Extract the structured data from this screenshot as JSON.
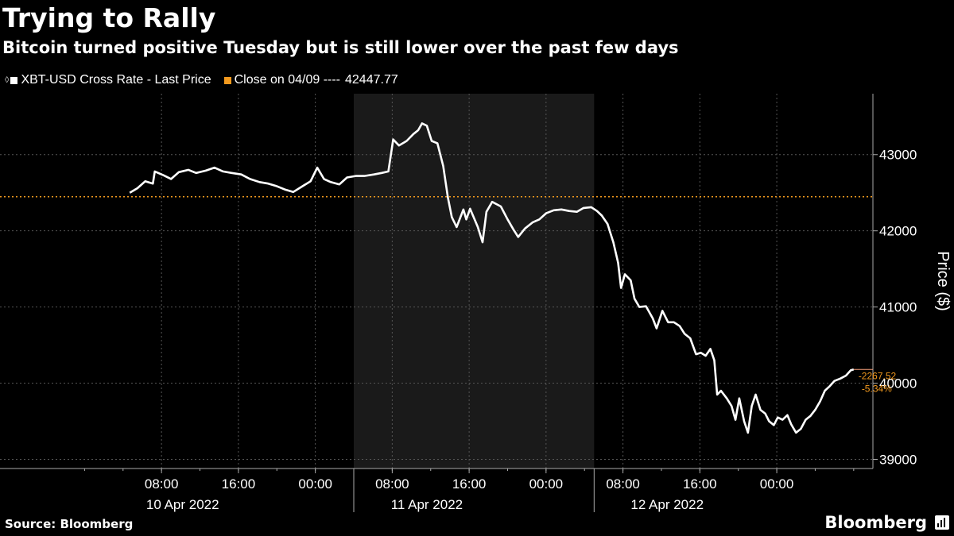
{
  "title": "Trying to Rally",
  "subtitle": "Bitcoin turned positive Tuesday but is still lower over the past few days",
  "legend": [
    {
      "label": "XBT-USD Cross Rate - Last Price",
      "color": "#ffffff",
      "icon": "pin-icon"
    },
    {
      "label": "Close on 04/09 ----",
      "value": "42447.77",
      "color": "#f39a1e"
    }
  ],
  "source": "Source: Bloomberg",
  "brand": "Bloomberg",
  "colors": {
    "background": "#000000",
    "shade": "#1a1a1a",
    "line": "#ffffff",
    "reference": "#f39a1e",
    "grid": "#555555"
  },
  "chart_data": {
    "type": "line",
    "ylabel": "Price ($)",
    "ylim": [
      38880,
      43800
    ],
    "y_ticks": [
      39000,
      40000,
      41000,
      42000,
      43000
    ],
    "x_range_hours": [
      -8.8,
      82
    ],
    "x_ticks": [
      {
        "h": 8,
        "label": "08:00"
      },
      {
        "h": 16,
        "label": "16:00"
      },
      {
        "h": 24,
        "label": "00:00"
      },
      {
        "h": 32,
        "label": "08:00"
      },
      {
        "h": 40,
        "label": "16:00"
      },
      {
        "h": 48,
        "label": "00:00"
      },
      {
        "h": 56,
        "label": "08:00"
      },
      {
        "h": 64,
        "label": "16:00"
      },
      {
        "h": 72,
        "label": "00:00"
      }
    ],
    "date_labels": [
      {
        "label": "10 Apr 2022",
        "center_h": 10.2
      },
      {
        "label": "11 Apr 2022",
        "center_h": 35.6
      },
      {
        "label": "12 Apr 2022",
        "center_h": 60.6
      }
    ],
    "day_dividers_h": [
      28,
      53
    ],
    "shaded_region_h": [
      28,
      53
    ],
    "reference_line": {
      "value": 42447.77
    },
    "annotation": {
      "change": "-2267.52",
      "percent": "-5.34%",
      "last_value": 40180
    },
    "series": [
      {
        "color": "#ffffff",
        "points": [
          [
            4.7,
            42500
          ],
          [
            5.5,
            42560
          ],
          [
            6.3,
            42650
          ],
          [
            7.1,
            42620
          ],
          [
            7.3,
            42780
          ],
          [
            8.2,
            42730
          ],
          [
            9.0,
            42680
          ],
          [
            9.8,
            42770
          ],
          [
            10.8,
            42800
          ],
          [
            11.6,
            42760
          ],
          [
            12.6,
            42790
          ],
          [
            13.5,
            42830
          ],
          [
            14.4,
            42780
          ],
          [
            15.3,
            42760
          ],
          [
            16.3,
            42740
          ],
          [
            17.2,
            42680
          ],
          [
            18.2,
            42640
          ],
          [
            19.1,
            42620
          ],
          [
            19.9,
            42590
          ],
          [
            20.9,
            42540
          ],
          [
            21.7,
            42510
          ],
          [
            22.6,
            42580
          ],
          [
            23.5,
            42650
          ],
          [
            24.2,
            42830
          ],
          [
            24.9,
            42680
          ],
          [
            25.6,
            42640
          ],
          [
            26.5,
            42610
          ],
          [
            27.3,
            42700
          ],
          [
            28.2,
            42720
          ],
          [
            29.1,
            42720
          ],
          [
            30.1,
            42740
          ],
          [
            30.9,
            42760
          ],
          [
            31.6,
            42780
          ],
          [
            32.1,
            43200
          ],
          [
            32.7,
            43120
          ],
          [
            33.5,
            43180
          ],
          [
            34.2,
            43270
          ],
          [
            34.7,
            43320
          ],
          [
            35.1,
            43410
          ],
          [
            35.6,
            43380
          ],
          [
            36.1,
            43180
          ],
          [
            36.7,
            43150
          ],
          [
            37.3,
            42850
          ],
          [
            37.8,
            42430
          ],
          [
            38.2,
            42180
          ],
          [
            38.7,
            42050
          ],
          [
            39.4,
            42280
          ],
          [
            39.7,
            42150
          ],
          [
            40.1,
            42290
          ],
          [
            40.9,
            42050
          ],
          [
            41.4,
            41850
          ],
          [
            41.8,
            42250
          ],
          [
            42.4,
            42380
          ],
          [
            43.3,
            42320
          ],
          [
            44.0,
            42150
          ],
          [
            44.6,
            42020
          ],
          [
            45.1,
            41920
          ],
          [
            45.8,
            42030
          ],
          [
            46.6,
            42110
          ],
          [
            47.3,
            42150
          ],
          [
            48.0,
            42230
          ],
          [
            48.8,
            42270
          ],
          [
            49.6,
            42280
          ],
          [
            50.4,
            42260
          ],
          [
            51.2,
            42250
          ],
          [
            51.9,
            42300
          ],
          [
            52.7,
            42310
          ],
          [
            53.3,
            42260
          ],
          [
            53.8,
            42200
          ],
          [
            54.4,
            42090
          ],
          [
            55.0,
            41850
          ],
          [
            55.5,
            41580
          ],
          [
            55.8,
            41250
          ],
          [
            56.2,
            41430
          ],
          [
            56.8,
            41350
          ],
          [
            57.2,
            41110
          ],
          [
            57.7,
            41000
          ],
          [
            58.4,
            41010
          ],
          [
            59.1,
            40850
          ],
          [
            59.5,
            40720
          ],
          [
            60.1,
            40950
          ],
          [
            60.7,
            40800
          ],
          [
            61.3,
            40800
          ],
          [
            61.9,
            40750
          ],
          [
            62.4,
            40650
          ],
          [
            63.0,
            40590
          ],
          [
            63.6,
            40380
          ],
          [
            64.1,
            40400
          ],
          [
            64.6,
            40360
          ],
          [
            65.1,
            40450
          ],
          [
            65.5,
            40300
          ],
          [
            65.8,
            39850
          ],
          [
            66.2,
            39900
          ],
          [
            66.8,
            39800
          ],
          [
            67.3,
            39700
          ],
          [
            67.7,
            39520
          ],
          [
            68.1,
            39800
          ],
          [
            68.6,
            39500
          ],
          [
            69.0,
            39350
          ],
          [
            69.4,
            39700
          ],
          [
            69.8,
            39850
          ],
          [
            70.3,
            39650
          ],
          [
            70.8,
            39600
          ],
          [
            71.2,
            39500
          ],
          [
            71.7,
            39450
          ],
          [
            72.1,
            39550
          ],
          [
            72.6,
            39520
          ],
          [
            73.1,
            39580
          ],
          [
            73.5,
            39460
          ],
          [
            74.0,
            39350
          ],
          [
            74.5,
            39400
          ],
          [
            75.0,
            39520
          ],
          [
            75.5,
            39570
          ],
          [
            76.0,
            39650
          ],
          [
            76.5,
            39760
          ],
          [
            77.0,
            39900
          ],
          [
            77.5,
            39960
          ],
          [
            78.0,
            40030
          ],
          [
            78.6,
            40060
          ],
          [
            79.2,
            40100
          ],
          [
            79.7,
            40170
          ],
          [
            80.0,
            40180
          ]
        ]
      }
    ]
  }
}
